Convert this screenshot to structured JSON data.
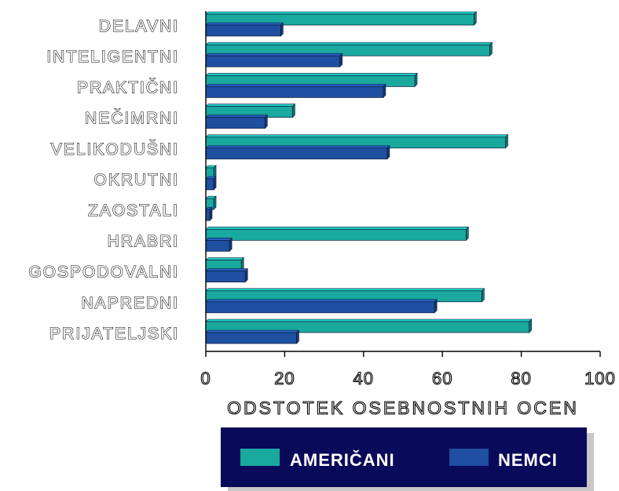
{
  "chart_data": {
    "type": "bar",
    "orientation": "horizontal",
    "categories": [
      "DELAVNI",
      "INTELIGENTNI",
      "PRAKTIČNI",
      "NEČIMRNI",
      "VELIKODUŠNI",
      "OKRUTNI",
      "ZAOSTALI",
      "HRABRI",
      "GOSPODOVALNI",
      "NAPREDNI",
      "PRIJATELJSKI"
    ],
    "series": [
      {
        "name": "AMERIČANI",
        "color": "#1aa99f",
        "values": [
          68,
          72,
          53,
          22,
          76,
          2,
          2,
          66,
          9,
          70,
          82
        ]
      },
      {
        "name": "NEMCI",
        "color": "#1f4fa0",
        "values": [
          19,
          34,
          45,
          15,
          46,
          2,
          1,
          6,
          10,
          58,
          23
        ]
      }
    ],
    "xlabel": "ODSTOTEK OSEBNOSTNIH OCEN",
    "xlim": [
      0,
      100
    ],
    "xticks": [
      0,
      20,
      40,
      60,
      80,
      100
    ],
    "legend": {
      "placement": "bottom",
      "background": "#0a0a5a"
    }
  }
}
